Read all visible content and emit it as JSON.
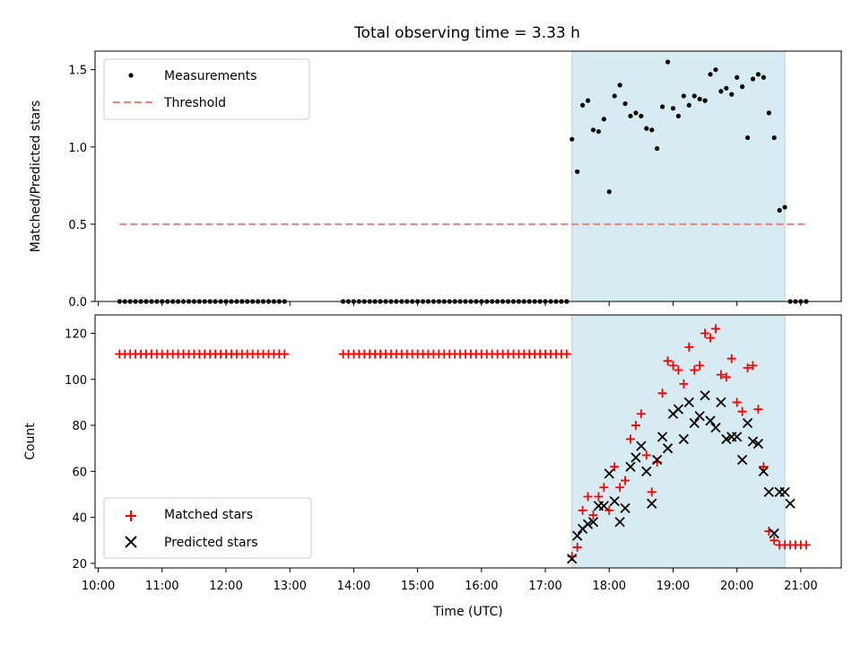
{
  "chart_data": [
    {
      "type": "scatter",
      "title": "Total observing time = 3.33 h",
      "xlabel": "",
      "ylabel": "Matched/Predicted stars",
      "xlim": [
        "09:57",
        "21:38"
      ],
      "ylim": [
        0.0,
        1.62
      ],
      "yticks": [
        "0.0",
        "0.5",
        "1.0",
        "1.5"
      ],
      "grid": false,
      "legend_position": "top-left",
      "highlight_span": [
        "17:25",
        "20:45"
      ],
      "series": [
        {
          "name": "Measurements",
          "color": "#000000",
          "marker": "dot",
          "x": [
            "10:20",
            "10:25",
            "10:30",
            "10:35",
            "10:40",
            "10:45",
            "10:50",
            "10:55",
            "11:00",
            "11:05",
            "11:10",
            "11:15",
            "11:20",
            "11:25",
            "11:30",
            "11:35",
            "11:40",
            "11:45",
            "11:50",
            "11:55",
            "12:00",
            "12:05",
            "12:10",
            "12:15",
            "12:20",
            "12:25",
            "12:30",
            "12:35",
            "12:40",
            "12:45",
            "12:50",
            "12:55",
            "13:50",
            "13:55",
            "14:00",
            "14:05",
            "14:10",
            "14:15",
            "14:20",
            "14:25",
            "14:30",
            "14:35",
            "14:40",
            "14:45",
            "14:50",
            "14:55",
            "15:00",
            "15:05",
            "15:10",
            "15:15",
            "15:20",
            "15:25",
            "15:30",
            "15:35",
            "15:40",
            "15:45",
            "15:50",
            "15:55",
            "16:00",
            "16:05",
            "16:10",
            "16:15",
            "16:20",
            "16:25",
            "16:30",
            "16:35",
            "16:40",
            "16:45",
            "16:50",
            "16:55",
            "17:00",
            "17:05",
            "17:10",
            "17:15",
            "17:20",
            "17:25",
            "17:30",
            "17:35",
            "17:40",
            "17:45",
            "17:50",
            "17:55",
            "18:00",
            "18:05",
            "18:10",
            "18:15",
            "18:20",
            "18:25",
            "18:30",
            "18:35",
            "18:40",
            "18:45",
            "18:50",
            "18:55",
            "19:00",
            "19:05",
            "19:10",
            "19:15",
            "19:20",
            "19:25",
            "19:30",
            "19:35",
            "19:40",
            "19:45",
            "19:50",
            "19:55",
            "20:00",
            "20:05",
            "20:10",
            "20:15",
            "20:20",
            "20:25",
            "20:30",
            "20:35",
            "20:40",
            "20:45",
            "20:50",
            "20:55",
            "21:00",
            "21:05"
          ],
          "y": [
            0,
            0,
            0,
            0,
            0,
            0,
            0,
            0,
            0,
            0,
            0,
            0,
            0,
            0,
            0,
            0,
            0,
            0,
            0,
            0,
            0,
            0,
            0,
            0,
            0,
            0,
            0,
            0,
            0,
            0,
            0,
            0,
            0,
            0,
            0,
            0,
            0,
            0,
            0,
            0,
            0,
            0,
            0,
            0,
            0,
            0,
            0,
            0,
            0,
            0,
            0,
            0,
            0,
            0,
            0,
            0,
            0,
            0,
            0,
            0,
            0,
            0,
            0,
            0,
            0,
            0,
            0,
            0,
            0,
            0,
            0,
            0,
            0,
            0,
            0,
            1.05,
            0.84,
            1.27,
            1.3,
            1.11,
            1.1,
            1.18,
            0.71,
            1.33,
            1.4,
            1.28,
            1.2,
            1.22,
            1.2,
            1.12,
            1.11,
            0.99,
            1.26,
            1.55,
            1.25,
            1.2,
            1.33,
            1.27,
            1.33,
            1.31,
            1.3,
            1.47,
            1.5,
            1.36,
            1.38,
            1.34,
            1.45,
            1.39,
            1.06,
            1.44,
            1.47,
            1.45,
            1.22,
            1.06,
            0.59,
            0.61,
            0,
            0,
            0,
            0
          ]
        },
        {
          "name": "Threshold",
          "color": "#f08080",
          "marker": "dashed-line",
          "x": [
            "10:20",
            "21:05"
          ],
          "y": [
            0.5,
            0.5
          ]
        }
      ]
    },
    {
      "type": "scatter",
      "title": "",
      "xlabel": "Time (UTC)",
      "ylabel": "Count",
      "xlim": [
        "09:57",
        "21:38"
      ],
      "ylim": [
        18,
        128
      ],
      "yticks": [
        "20",
        "40",
        "60",
        "80",
        "100",
        "120"
      ],
      "xticks": [
        "10:00",
        "11:00",
        "12:00",
        "13:00",
        "14:00",
        "15:00",
        "16:00",
        "17:00",
        "18:00",
        "19:00",
        "20:00",
        "21:00"
      ],
      "grid": false,
      "legend_position": "bottom-left",
      "highlight_span": [
        "17:25",
        "20:45"
      ],
      "series": [
        {
          "name": "Matched stars",
          "color": "#ff0000",
          "marker": "plus",
          "x": [
            "10:20",
            "10:25",
            "10:30",
            "10:35",
            "10:40",
            "10:45",
            "10:50",
            "10:55",
            "11:00",
            "11:05",
            "11:10",
            "11:15",
            "11:20",
            "11:25",
            "11:30",
            "11:35",
            "11:40",
            "11:45",
            "11:50",
            "11:55",
            "12:00",
            "12:05",
            "12:10",
            "12:15",
            "12:20",
            "12:25",
            "12:30",
            "12:35",
            "12:40",
            "12:45",
            "12:50",
            "12:55",
            "13:50",
            "13:55",
            "14:00",
            "14:05",
            "14:10",
            "14:15",
            "14:20",
            "14:25",
            "14:30",
            "14:35",
            "14:40",
            "14:45",
            "14:50",
            "14:55",
            "15:00",
            "15:05",
            "15:10",
            "15:15",
            "15:20",
            "15:25",
            "15:30",
            "15:35",
            "15:40",
            "15:45",
            "15:50",
            "15:55",
            "16:00",
            "16:05",
            "16:10",
            "16:15",
            "16:20",
            "16:25",
            "16:30",
            "16:35",
            "16:40",
            "16:45",
            "16:50",
            "16:55",
            "17:00",
            "17:05",
            "17:10",
            "17:15",
            "17:20",
            "17:25",
            "17:30",
            "17:35",
            "17:40",
            "17:45",
            "17:50",
            "17:55",
            "18:00",
            "18:05",
            "18:10",
            "18:15",
            "18:20",
            "18:25",
            "18:30",
            "18:35",
            "18:40",
            "18:45",
            "18:50",
            "18:55",
            "19:00",
            "19:05",
            "19:10",
            "19:15",
            "19:20",
            "19:25",
            "19:30",
            "19:35",
            "19:40",
            "19:45",
            "19:50",
            "19:55",
            "20:00",
            "20:05",
            "20:10",
            "20:15",
            "20:20",
            "20:25",
            "20:30",
            "20:35",
            "20:40",
            "20:45",
            "20:50",
            "20:55",
            "21:00",
            "21:05"
          ],
          "y": [
            111,
            111,
            111,
            111,
            111,
            111,
            111,
            111,
            111,
            111,
            111,
            111,
            111,
            111,
            111,
            111,
            111,
            111,
            111,
            111,
            111,
            111,
            111,
            111,
            111,
            111,
            111,
            111,
            111,
            111,
            111,
            111,
            111,
            111,
            111,
            111,
            111,
            111,
            111,
            111,
            111,
            111,
            111,
            111,
            111,
            111,
            111,
            111,
            111,
            111,
            111,
            111,
            111,
            111,
            111,
            111,
            111,
            111,
            111,
            111,
            111,
            111,
            111,
            111,
            111,
            111,
            111,
            111,
            111,
            111,
            111,
            111,
            111,
            111,
            111,
            23,
            27,
            43,
            49,
            41,
            49,
            53,
            43,
            62,
            53,
            56,
            74,
            80,
            85,
            67,
            51,
            64,
            94,
            108,
            106,
            104,
            98,
            114,
            104,
            106,
            120,
            118,
            122,
            102,
            101,
            109,
            90,
            86,
            105,
            106,
            87,
            62,
            34,
            30,
            28,
            28,
            28,
            28,
            28,
            28
          ]
        },
        {
          "name": "Predicted stars",
          "color": "#000000",
          "marker": "x",
          "x": [
            "17:25",
            "17:30",
            "17:35",
            "17:40",
            "17:45",
            "17:50",
            "17:55",
            "18:00",
            "18:05",
            "18:10",
            "18:15",
            "18:20",
            "18:25",
            "18:30",
            "18:35",
            "18:40",
            "18:45",
            "18:50",
            "18:55",
            "19:00",
            "19:05",
            "19:10",
            "19:15",
            "19:20",
            "19:25",
            "19:30",
            "19:35",
            "19:40",
            "19:45",
            "19:50",
            "19:55",
            "20:00",
            "20:05",
            "20:10",
            "20:15",
            "20:20",
            "20:25",
            "20:30",
            "20:35",
            "20:40",
            "20:45",
            "20:50"
          ],
          "y": [
            22,
            32,
            35,
            37,
            38,
            45,
            45,
            59,
            47,
            38,
            44,
            62,
            66,
            71,
            60,
            46,
            65,
            75,
            70,
            85,
            87,
            74,
            90,
            81,
            84,
            93,
            82,
            79,
            90,
            74,
            75,
            75,
            65,
            81,
            73,
            72,
            60,
            51,
            33,
            51,
            51,
            46
          ]
        }
      ]
    }
  ]
}
